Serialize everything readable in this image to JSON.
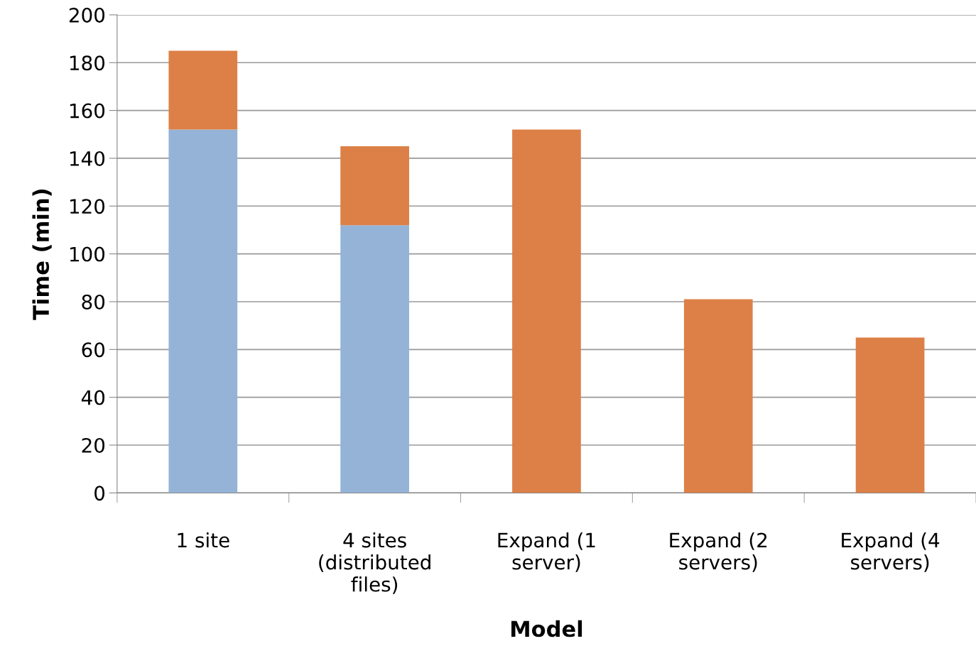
{
  "chart_data": {
    "type": "bar",
    "stacked": true,
    "xlabel": "Model",
    "ylabel": "Time (min)",
    "categories": [
      "1 site",
      "4 sites\n(distributed\nfiles)",
      "Expand (1\nserver)",
      "Expand (2\nservers)",
      "Expand (4\nservers)"
    ],
    "series": [
      {
        "color": "#95b3d7",
        "values": [
          152,
          112,
          null,
          null,
          null
        ]
      },
      {
        "color": "#dd8047",
        "values": [
          33,
          33,
          152,
          81,
          65
        ]
      }
    ],
    "ylim": [
      0,
      200
    ],
    "yticks": [
      0,
      20,
      40,
      60,
      80,
      100,
      120,
      140,
      160,
      180,
      200
    ],
    "grid": "y",
    "legend": false
  }
}
